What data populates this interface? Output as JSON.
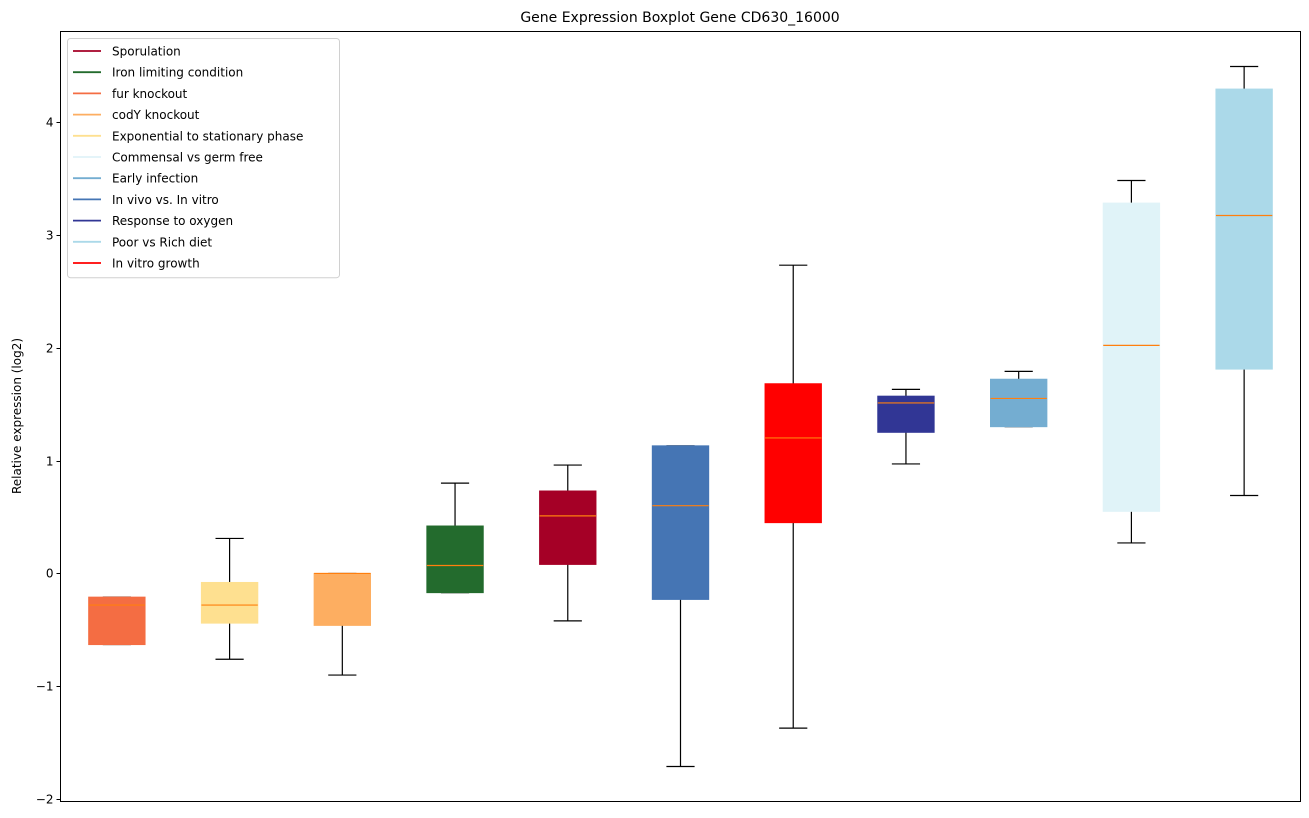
{
  "chart_data": {
    "type": "boxplot",
    "title": "Gene Expression Boxplot Gene CD630_16000",
    "xlabel": "",
    "ylabel": "Relative expression (log2)",
    "ylim": [
      -2.02,
      4.8
    ],
    "yticks": [
      -2,
      -1,
      0,
      1,
      2,
      3,
      4
    ],
    "ytick_labels": [
      "−2",
      "−1",
      "0",
      "1",
      "2",
      "3",
      "4"
    ],
    "grid": false,
    "legend_placement": "top-left",
    "median_color": "#ff7f0e",
    "whisker_color": "#000000",
    "legend": [
      {
        "label": "Sporulation",
        "color": "#a50026"
      },
      {
        "label": "Iron limiting condition",
        "color": "#236b2d"
      },
      {
        "label": "fur knockout",
        "color": "#f46d43"
      },
      {
        "label": "codY knockout",
        "color": "#fdae61"
      },
      {
        "label": "Exponential to stationary phase",
        "color": "#fee090"
      },
      {
        "label": "Commensal vs germ free",
        "color": "#e0f3f8"
      },
      {
        "label": "Early infection",
        "color": "#74add1"
      },
      {
        "label": "In vivo vs. In vitro",
        "color": "#4575b4"
      },
      {
        "label": "Response to oxygen",
        "color": "#313695"
      },
      {
        "label": "Poor vs Rich diet",
        "color": "#abd9e9"
      },
      {
        "label": "In vitro growth",
        "color": "#ff0000"
      }
    ],
    "boxes": [
      {
        "group": "fur knockout",
        "color": "#f46d43",
        "whisker_low": -0.63,
        "q1": -0.63,
        "median": -0.28,
        "q3": -0.21,
        "whisker_high": -0.21
      },
      {
        "group": "Exponential to stationary phase",
        "color": "#fee090",
        "whisker_low": -0.76,
        "q1": -0.44,
        "median": -0.28,
        "q3": -0.08,
        "whisker_high": 0.31
      },
      {
        "group": "codY knockout",
        "color": "#fdae61",
        "whisker_low": -0.9,
        "q1": -0.46,
        "median": 0.0,
        "q3": 0.0,
        "whisker_high": 0.0
      },
      {
        "group": "Iron limiting condition",
        "color": "#236b2d",
        "whisker_low": -0.17,
        "q1": -0.17,
        "median": 0.07,
        "q3": 0.42,
        "whisker_high": 0.8
      },
      {
        "group": "Sporulation",
        "color": "#a50026",
        "whisker_low": -0.42,
        "q1": 0.08,
        "median": 0.51,
        "q3": 0.73,
        "whisker_high": 0.96
      },
      {
        "group": "In vivo vs. In vitro",
        "color": "#4575b4",
        "whisker_low": -1.71,
        "q1": -0.23,
        "median": 0.6,
        "q3": 1.13,
        "whisker_high": 1.13
      },
      {
        "group": "In vitro growth",
        "color": "#ff0000",
        "whisker_low": -1.37,
        "q1": 0.45,
        "median": 1.2,
        "q3": 1.68,
        "whisker_high": 2.73
      },
      {
        "group": "Response to oxygen",
        "color": "#313695",
        "whisker_low": 0.97,
        "q1": 1.25,
        "median": 1.51,
        "q3": 1.57,
        "whisker_high": 1.63
      },
      {
        "group": "Early infection",
        "color": "#74add1",
        "whisker_low": 1.3,
        "q1": 1.3,
        "median": 1.55,
        "q3": 1.72,
        "whisker_high": 1.79
      },
      {
        "group": "Commensal vs germ free",
        "color": "#e0f3f8",
        "whisker_low": 0.27,
        "q1": 0.55,
        "median": 2.02,
        "q3": 3.28,
        "whisker_high": 3.48
      },
      {
        "group": "Poor vs Rich diet",
        "color": "#abd9e9",
        "whisker_low": 0.69,
        "q1": 1.81,
        "median": 3.17,
        "q3": 4.29,
        "whisker_high": 4.49
      }
    ]
  }
}
